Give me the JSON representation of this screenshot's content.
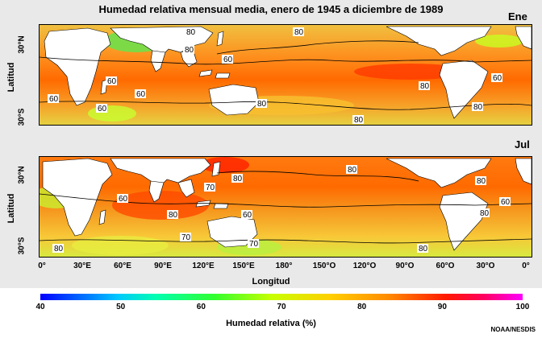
{
  "title": "Humedad relativa mensual media, enero de 1945 a diciembre de 1989",
  "panels": [
    {
      "month": "Ene",
      "ylabel": "Latitud",
      "yticks": [
        "30°N",
        "30°S"
      ],
      "contour_labels": [
        "80",
        "80",
        "60",
        "60",
        "60",
        "60",
        "60",
        "80",
        "80",
        "80",
        "80",
        "80",
        "60"
      ]
    },
    {
      "month": "Jul",
      "ylabel": "Latitud",
      "yticks": [
        "30°N",
        "30°S"
      ],
      "contour_labels": [
        "80",
        "60",
        "80",
        "60",
        "80",
        "70",
        "70",
        "80",
        "80",
        "60",
        "80",
        "80",
        "70"
      ]
    }
  ],
  "xaxis": {
    "label": "Longitud",
    "ticks": [
      "0°",
      "30°E",
      "60°E",
      "90°E",
      "120°E",
      "150°E",
      "180°",
      "150°O",
      "120°O",
      "90°O",
      "60°O",
      "30°O",
      "0°"
    ]
  },
  "colorbar": {
    "label": "Humedad relativa (%)",
    "ticks": [
      "40",
      "50",
      "60",
      "70",
      "80",
      "90",
      "100"
    ],
    "range": [
      40,
      100
    ]
  },
  "credit": "NOAA/NESDIS",
  "colors": {
    "land": "#ffffff",
    "ocean_high": "#ff6a00",
    "ocean_mid": "#f5b23a",
    "ocean_low": "#7be34a"
  }
}
